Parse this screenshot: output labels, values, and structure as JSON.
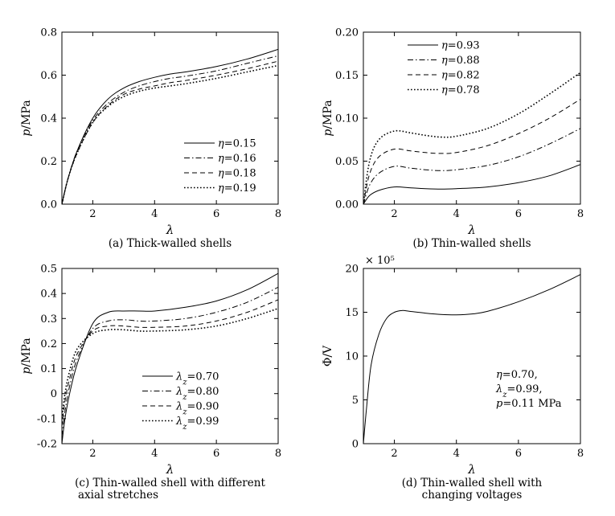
{
  "chart_data": [
    {
      "type": "line",
      "caption": "(a) Thick-walled shells",
      "xlabel": "λ",
      "ylabel": "p/MPa",
      "xlim": [
        1,
        8
      ],
      "ylim": [
        0,
        0.8
      ],
      "xticks": [
        "2",
        "4",
        "6",
        "8"
      ],
      "yticks": [
        "0.0",
        "0.2",
        "0.4",
        "0.6",
        "0.8"
      ],
      "legend": "bottom-right",
      "series": [
        {
          "name": "η=0.15",
          "dash": "solid",
          "x": [
            1,
            1.2,
            1.5,
            2,
            2.5,
            3,
            3.5,
            4,
            4.5,
            5,
            6,
            7,
            8
          ],
          "y": [
            0,
            0.12,
            0.25,
            0.4,
            0.49,
            0.54,
            0.57,
            0.59,
            0.605,
            0.615,
            0.64,
            0.675,
            0.72
          ]
        },
        {
          "name": "η=0.16",
          "dash": "dashdot",
          "x": [
            1,
            1.2,
            1.5,
            2,
            2.5,
            3,
            3.5,
            4,
            4.5,
            5,
            6,
            7,
            8
          ],
          "y": [
            0,
            0.12,
            0.25,
            0.39,
            0.47,
            0.52,
            0.55,
            0.57,
            0.585,
            0.595,
            0.62,
            0.655,
            0.69
          ]
        },
        {
          "name": "η=0.18",
          "dash": "dashed",
          "x": [
            1,
            1.2,
            1.5,
            2,
            2.5,
            3,
            3.5,
            4,
            4.5,
            5,
            6,
            7,
            8
          ],
          "y": [
            0,
            0.12,
            0.24,
            0.38,
            0.46,
            0.51,
            0.535,
            0.55,
            0.565,
            0.575,
            0.6,
            0.63,
            0.665
          ]
        },
        {
          "name": "η=0.19",
          "dash": "dotted",
          "x": [
            1,
            1.2,
            1.5,
            2,
            2.5,
            3,
            3.5,
            4,
            4.5,
            5,
            6,
            7,
            8
          ],
          "y": [
            0,
            0.12,
            0.24,
            0.38,
            0.455,
            0.5,
            0.525,
            0.54,
            0.55,
            0.56,
            0.585,
            0.615,
            0.645
          ]
        }
      ]
    },
    {
      "type": "line",
      "caption": "(b) Thin-walled shells",
      "xlabel": "λ",
      "ylabel": "p/MPa",
      "xlim": [
        1,
        8
      ],
      "ylim": [
        0,
        0.2
      ],
      "xticks": [
        "2",
        "4",
        "6",
        "8"
      ],
      "yticks": [
        "0.00",
        "0.05",
        "0.10",
        "0.15",
        "0.20"
      ],
      "legend": "top-left",
      "series": [
        {
          "name": "η=0.93",
          "dash": "solid",
          "x": [
            1,
            1.2,
            1.5,
            2,
            2.5,
            3,
            3.5,
            4,
            5,
            6,
            7,
            8
          ],
          "y": [
            0,
            0.01,
            0.016,
            0.02,
            0.019,
            0.018,
            0.0175,
            0.018,
            0.02,
            0.025,
            0.033,
            0.046
          ]
        },
        {
          "name": "η=0.88",
          "dash": "dashdot",
          "x": [
            1,
            1.2,
            1.5,
            2,
            2.5,
            3,
            3.5,
            4,
            5,
            6,
            7,
            8
          ],
          "y": [
            0,
            0.022,
            0.036,
            0.044,
            0.042,
            0.04,
            0.039,
            0.04,
            0.045,
            0.055,
            0.07,
            0.088
          ]
        },
        {
          "name": "η=0.82",
          "dash": "dashed",
          "x": [
            1,
            1.2,
            1.5,
            2,
            2.5,
            3,
            3.5,
            4,
            5,
            6,
            7,
            8
          ],
          "y": [
            0,
            0.035,
            0.055,
            0.064,
            0.062,
            0.06,
            0.059,
            0.06,
            0.068,
            0.082,
            0.1,
            0.122
          ]
        },
        {
          "name": "η=0.78",
          "dash": "dotted",
          "x": [
            1,
            1.2,
            1.5,
            2,
            2.5,
            3,
            3.5,
            4,
            5,
            6,
            7,
            8
          ],
          "y": [
            0,
            0.05,
            0.075,
            0.085,
            0.083,
            0.08,
            0.078,
            0.079,
            0.088,
            0.105,
            0.128,
            0.153
          ]
        }
      ]
    },
    {
      "type": "line",
      "caption": "(c) Thin-walled shell with different\naxial stretches",
      "xlabel": "λ",
      "ylabel": "p/MPa",
      "xlim": [
        1,
        8
      ],
      "ylim": [
        -0.2,
        0.5
      ],
      "xticks": [
        "2",
        "4",
        "6",
        "8"
      ],
      "yticks": [
        "-0.2",
        "-0.1",
        "0",
        "0.1",
        "0.2",
        "0.3",
        "0.4",
        "0.5"
      ],
      "legend": "bottom-center",
      "series": [
        {
          "name": "λz=0.70",
          "dash": "solid",
          "x": [
            1,
            1.1,
            1.25,
            1.5,
            2,
            2.5,
            3,
            3.5,
            4,
            5,
            6,
            7,
            8
          ],
          "y": [
            -0.2,
            -0.1,
            0.0,
            0.12,
            0.28,
            0.325,
            0.33,
            0.33,
            0.33,
            0.345,
            0.37,
            0.415,
            0.48
          ]
        },
        {
          "name": "λz=0.80",
          "dash": "dashdot",
          "x": [
            1,
            1.1,
            1.25,
            1.5,
            2,
            2.5,
            3,
            3.5,
            4,
            5,
            6,
            7,
            8
          ],
          "y": [
            -0.17,
            -0.07,
            0.03,
            0.14,
            0.26,
            0.29,
            0.295,
            0.29,
            0.29,
            0.3,
            0.325,
            0.365,
            0.425
          ]
        },
        {
          "name": "λz=0.90",
          "dash": "dashed",
          "x": [
            1,
            1.1,
            1.25,
            1.5,
            2,
            2.5,
            3,
            3.5,
            4,
            5,
            6,
            7,
            8
          ],
          "y": [
            -0.13,
            -0.03,
            0.06,
            0.16,
            0.25,
            0.27,
            0.27,
            0.265,
            0.265,
            0.27,
            0.29,
            0.325,
            0.375
          ]
        },
        {
          "name": "λz=0.99",
          "dash": "dotted",
          "x": [
            1,
            1.1,
            1.25,
            1.5,
            2,
            2.5,
            3,
            3.5,
            4,
            5,
            6,
            7,
            8
          ],
          "y": [
            -0.1,
            0.0,
            0.09,
            0.18,
            0.24,
            0.255,
            0.255,
            0.25,
            0.25,
            0.255,
            0.27,
            0.3,
            0.34
          ]
        }
      ]
    },
    {
      "type": "line",
      "caption": "(d) Thin-walled shell with\nchanging voltages",
      "xlabel": "λ",
      "ylabel": "Φ/V",
      "multiplier": "× 10⁵",
      "xlim": [
        1,
        8
      ],
      "ylim": [
        0,
        20
      ],
      "xticks": [
        "2",
        "4",
        "6",
        "8"
      ],
      "yticks": [
        "0",
        "5",
        "10",
        "15",
        "20"
      ],
      "annotation": [
        "η=0.70,",
        "λz=0.99,",
        "p=0.11 MPa"
      ],
      "series": [
        {
          "dash": "solid",
          "x": [
            1,
            1.1,
            1.25,
            1.5,
            1.75,
            2,
            2.25,
            2.5,
            3,
            3.5,
            4,
            4.5,
            5,
            6,
            7,
            8
          ],
          "y": [
            0,
            4,
            9,
            12.5,
            14.3,
            15.0,
            15.2,
            15.1,
            14.9,
            14.75,
            14.7,
            14.8,
            15.1,
            16.2,
            17.6,
            19.3
          ]
        }
      ]
    }
  ]
}
